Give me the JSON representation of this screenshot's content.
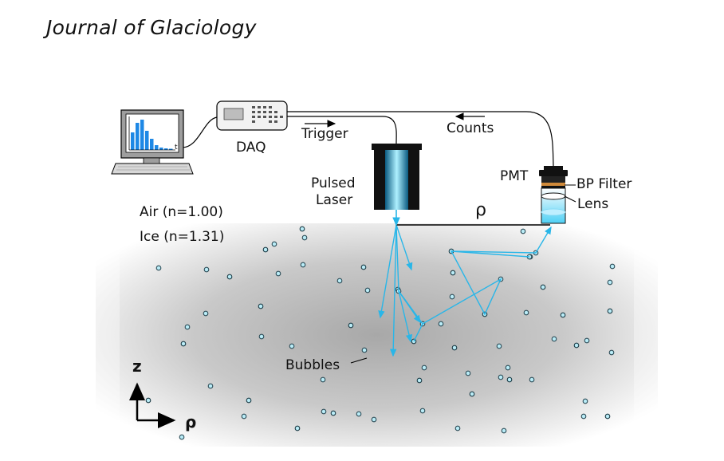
{
  "header": {
    "journal": "Journal of Glaciology"
  },
  "labels": {
    "daq": "DAQ",
    "trigger": "Trigger",
    "counts": "Counts",
    "pmt": "PMT",
    "bp_filter": "BP Filter",
    "lens": "Lens",
    "pulsed_line1": "Pulsed",
    "pulsed_line2": "Laser",
    "air": "Air (n=1.00)",
    "ice": "Ice (n=1.31)",
    "rho_top": "ρ",
    "bubbles": "Bubbles",
    "axis_z": "z",
    "axis_rho": "ρ",
    "monitor_t": "t"
  },
  "colors": {
    "photon": "#29b6e8",
    "laser_beam": "#3ec4f0",
    "ice_gray": "#c8c8c8",
    "histogram": "#1e88e5"
  },
  "icons": [
    "computer-icon",
    "daq-box-icon",
    "pulsed-laser-icon",
    "pmt-detector-icon"
  ]
}
